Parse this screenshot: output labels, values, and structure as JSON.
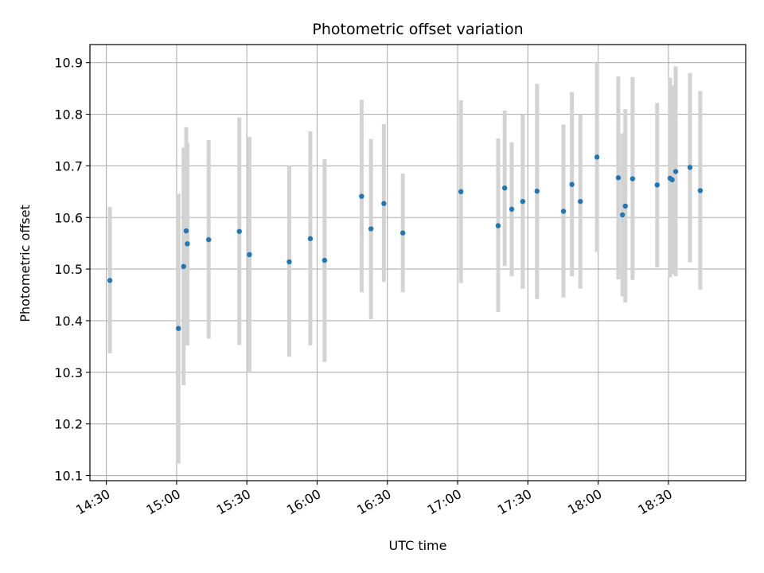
{
  "chart_data": {
    "type": "scatter",
    "title": "Photometric offset variation",
    "xlabel": "UTC time",
    "ylabel": "Photometric offset",
    "grid": true,
    "xlim_minutes": [
      863,
      1143
    ],
    "ylim": [
      10.09,
      10.935
    ],
    "x_ticks": [
      {
        "minute": 870,
        "label": "14:30"
      },
      {
        "minute": 900,
        "label": "15:00"
      },
      {
        "minute": 930,
        "label": "15:30"
      },
      {
        "minute": 960,
        "label": "16:00"
      },
      {
        "minute": 990,
        "label": "16:30"
      },
      {
        "minute": 1020,
        "label": "17:00"
      },
      {
        "minute": 1050,
        "label": "17:30"
      },
      {
        "minute": 1080,
        "label": "18:00"
      },
      {
        "minute": 1110,
        "label": "18:30"
      }
    ],
    "y_ticks": [
      {
        "value": 10.1,
        "label": "10.1"
      },
      {
        "value": 10.2,
        "label": "10.2"
      },
      {
        "value": 10.3,
        "label": "10.3"
      },
      {
        "value": 10.4,
        "label": "10.4"
      },
      {
        "value": 10.5,
        "label": "10.5"
      },
      {
        "value": 10.6,
        "label": "10.6"
      },
      {
        "value": 10.7,
        "label": "10.7"
      },
      {
        "value": 10.8,
        "label": "10.8"
      },
      {
        "value": 10.9,
        "label": "10.9"
      }
    ],
    "colors": {
      "point": "#1f77b4",
      "errorbar": "#d3d3d3",
      "grid": "#b0b0b0",
      "axes": "#000000"
    },
    "points": [
      {
        "minute": 871.5,
        "value": 10.478,
        "low": 10.337,
        "high": 10.62
      },
      {
        "minute": 900.8,
        "value": 10.385,
        "low": 10.123,
        "high": 10.646
      },
      {
        "minute": 903.0,
        "value": 10.505,
        "low": 10.275,
        "high": 10.735
      },
      {
        "minute": 904.1,
        "value": 10.574,
        "low": 10.4,
        "high": 10.775
      },
      {
        "minute": 904.6,
        "value": 10.549,
        "low": 10.352,
        "high": 10.745
      },
      {
        "minute": 913.7,
        "value": 10.557,
        "low": 10.365,
        "high": 10.75
      },
      {
        "minute": 926.8,
        "value": 10.573,
        "low": 10.353,
        "high": 10.794
      },
      {
        "minute": 931.1,
        "value": 10.528,
        "low": 10.3,
        "high": 10.756
      },
      {
        "minute": 948.1,
        "value": 10.514,
        "low": 10.33,
        "high": 10.7
      },
      {
        "minute": 957.1,
        "value": 10.559,
        "low": 10.352,
        "high": 10.767
      },
      {
        "minute": 963.2,
        "value": 10.517,
        "low": 10.32,
        "high": 10.713
      },
      {
        "minute": 979.0,
        "value": 10.641,
        "low": 10.455,
        "high": 10.828
      },
      {
        "minute": 983.0,
        "value": 10.578,
        "low": 10.403,
        "high": 10.752
      },
      {
        "minute": 988.5,
        "value": 10.627,
        "low": 10.475,
        "high": 10.781
      },
      {
        "minute": 996.6,
        "value": 10.57,
        "low": 10.455,
        "high": 10.685
      },
      {
        "minute": 1021.4,
        "value": 10.65,
        "low": 10.473,
        "high": 10.827
      },
      {
        "minute": 1037.3,
        "value": 10.584,
        "low": 10.417,
        "high": 10.753
      },
      {
        "minute": 1040.1,
        "value": 10.657,
        "low": 10.506,
        "high": 10.807
      },
      {
        "minute": 1043.1,
        "value": 10.616,
        "low": 10.486,
        "high": 10.746
      },
      {
        "minute": 1047.8,
        "value": 10.631,
        "low": 10.462,
        "high": 10.8
      },
      {
        "minute": 1053.9,
        "value": 10.651,
        "low": 10.442,
        "high": 10.859
      },
      {
        "minute": 1065.2,
        "value": 10.612,
        "low": 10.445,
        "high": 10.78
      },
      {
        "minute": 1068.8,
        "value": 10.664,
        "low": 10.486,
        "high": 10.843
      },
      {
        "minute": 1072.4,
        "value": 10.631,
        "low": 10.462,
        "high": 10.8
      },
      {
        "minute": 1079.5,
        "value": 10.717,
        "low": 10.533,
        "high": 10.9
      },
      {
        "minute": 1088.6,
        "value": 10.677,
        "low": 10.48,
        "high": 10.873
      },
      {
        "minute": 1090.4,
        "value": 10.605,
        "low": 10.447,
        "high": 10.763
      },
      {
        "minute": 1091.6,
        "value": 10.622,
        "low": 10.435,
        "high": 10.81
      },
      {
        "minute": 1094.7,
        "value": 10.675,
        "low": 10.479,
        "high": 10.872
      },
      {
        "minute": 1105.2,
        "value": 10.663,
        "low": 10.503,
        "high": 10.822
      },
      {
        "minute": 1110.7,
        "value": 10.676,
        "low": 10.484,
        "high": 10.871
      },
      {
        "minute": 1111.6,
        "value": 10.673,
        "low": 10.49,
        "high": 10.856
      },
      {
        "minute": 1113.1,
        "value": 10.689,
        "low": 10.486,
        "high": 10.893
      },
      {
        "minute": 1119.2,
        "value": 10.697,
        "low": 10.513,
        "high": 10.88
      },
      {
        "minute": 1123.6,
        "value": 10.652,
        "low": 10.46,
        "high": 10.845
      }
    ]
  }
}
